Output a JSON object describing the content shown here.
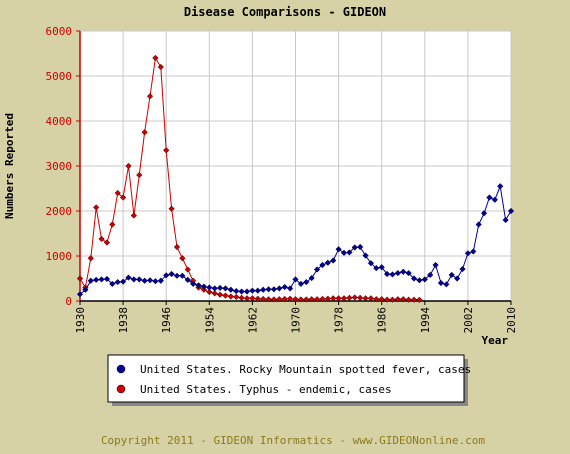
{
  "colors": {
    "background": "#d6d2a6",
    "plot_background": "#ffffff",
    "axis_left": "#cc0000",
    "axis_bottom": "#000000",
    "rmsf": "#000099",
    "typhus": "#cc0000",
    "copyright": "#8a7a1a"
  },
  "footer": {
    "copyright": "Copyright 2011 - GIDEON Informatics - www.GIDEONonline.com"
  },
  "chart_data": {
    "type": "line",
    "title": "Disease Comparisons - GIDEON",
    "xlabel": "Year",
    "ylabel": "Numbers Reported",
    "xlim": [
      1930,
      2010
    ],
    "ylim": [
      0,
      6000
    ],
    "x_ticks": [
      1930,
      1938,
      1946,
      1954,
      1962,
      1970,
      1978,
      1986,
      1994,
      2002,
      2010
    ],
    "y_ticks": [
      0,
      1000,
      2000,
      3000,
      4000,
      5000,
      6000
    ],
    "grid": true,
    "legend_position": "bottom",
    "series": [
      {
        "name": "United States. Rocky Mountain spotted fever, cases",
        "color": "#000099",
        "x": [
          1930,
          1931,
          1932,
          1933,
          1934,
          1935,
          1936,
          1937,
          1938,
          1939,
          1940,
          1941,
          1942,
          1943,
          1944,
          1945,
          1946,
          1947,
          1948,
          1949,
          1950,
          1951,
          1952,
          1953,
          1954,
          1955,
          1956,
          1957,
          1958,
          1959,
          1960,
          1961,
          1962,
          1963,
          1964,
          1965,
          1966,
          1967,
          1968,
          1969,
          1970,
          1971,
          1972,
          1973,
          1974,
          1975,
          1976,
          1977,
          1978,
          1979,
          1980,
          1981,
          1982,
          1983,
          1984,
          1985,
          1986,
          1987,
          1988,
          1989,
          1990,
          1991,
          1992,
          1993,
          1994,
          1995,
          1996,
          1997,
          1998,
          1999,
          2000,
          2001,
          2002,
          2003,
          2004,
          2005,
          2006,
          2007,
          2008,
          2009,
          2010
        ],
        "values": [
          150,
          250,
          450,
          470,
          480,
          490,
          380,
          420,
          430,
          520,
          480,
          480,
          450,
          460,
          440,
          450,
          570,
          600,
          560,
          560,
          470,
          380,
          350,
          320,
          300,
          280,
          290,
          280,
          250,
          220,
          210,
          210,
          230,
          230,
          250,
          260,
          260,
          280,
          310,
          280,
          480,
          380,
          420,
          510,
          700,
          800,
          850,
          900,
          1150,
          1070,
          1080,
          1190,
          1200,
          1010,
          840,
          730,
          750,
          600,
          590,
          620,
          650,
          620,
          500,
          460,
          480,
          580,
          800,
          400,
          370,
          580,
          500,
          710,
          1060,
          1100,
          1700,
          1950,
          2300,
          2250,
          2550,
          1800,
          2000
        ]
      },
      {
        "name": "United States. Typhus - endemic, cases",
        "color": "#cc0000",
        "x": [
          1930,
          1931,
          1932,
          1933,
          1934,
          1935,
          1936,
          1937,
          1938,
          1939,
          1940,
          1941,
          1942,
          1943,
          1944,
          1945,
          1946,
          1947,
          1948,
          1949,
          1950,
          1951,
          1952,
          1953,
          1954,
          1955,
          1956,
          1957,
          1958,
          1959,
          1960,
          1961,
          1962,
          1963,
          1964,
          1965,
          1966,
          1967,
          1968,
          1969,
          1970,
          1971,
          1972,
          1973,
          1974,
          1975,
          1976,
          1977,
          1978,
          1979,
          1980,
          1981,
          1982,
          1983,
          1984,
          1985,
          1986,
          1987,
          1988,
          1989,
          1990,
          1991,
          1992,
          1993
        ],
        "values": [
          500,
          300,
          950,
          2080,
          1380,
          1300,
          1700,
          2400,
          2300,
          3000,
          1900,
          2800,
          3750,
          4550,
          5400,
          5200,
          3350,
          2050,
          1200,
          950,
          700,
          450,
          300,
          250,
          200,
          170,
          140,
          120,
          100,
          90,
          70,
          60,
          60,
          50,
          45,
          40,
          35,
          40,
          45,
          50,
          40,
          35,
          35,
          40,
          40,
          45,
          50,
          60,
          60,
          60,
          70,
          80,
          70,
          60,
          60,
          40,
          40,
          30,
          30,
          40,
          40,
          30,
          30,
          25
        ]
      }
    ]
  }
}
